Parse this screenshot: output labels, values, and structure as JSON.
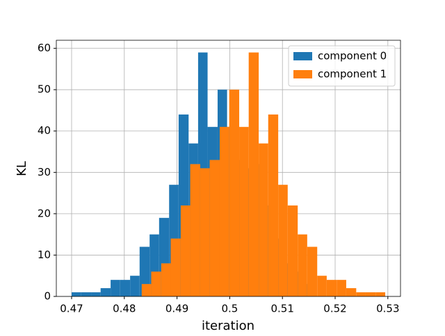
{
  "chart_data": {
    "type": "histogram",
    "xlabel": "iteration",
    "ylabel": "KL",
    "xlim": [
      0.4671,
      0.5324
    ],
    "ylim": [
      0,
      61.95
    ],
    "xticks": [
      0.47,
      0.48,
      0.49,
      0.5,
      0.51,
      0.52,
      0.53
    ],
    "yticks": [
      0,
      10,
      20,
      30,
      40,
      50,
      60
    ],
    "grid": true,
    "legend": "upper right",
    "series": [
      {
        "name": "component 0",
        "color": "#1f77b4",
        "bins": [
          0.47,
          0.4718,
          0.4737,
          0.4755,
          0.4774,
          0.4792,
          0.4811,
          0.4829,
          0.4848,
          0.4866,
          0.4885,
          0.4903,
          0.4922,
          0.494,
          0.4958,
          0.4977,
          0.4995,
          0.5014,
          0.5032,
          0.5051,
          0.5069,
          0.5088,
          0.5106,
          0.5125,
          0.5143,
          0.5162
        ],
        "values": [
          1,
          1,
          1,
          2,
          4,
          4,
          5,
          12,
          15,
          19,
          27,
          44,
          37,
          59,
          41,
          50,
          41,
          33,
          31,
          32,
          22,
          14,
          8,
          6,
          3
        ]
      },
      {
        "name": "component 1",
        "color": "#ff7f0e",
        "bins": [
          0.4833,
          0.4851,
          0.487,
          0.4888,
          0.4907,
          0.4925,
          0.4944,
          0.4962,
          0.4981,
          0.4999,
          0.5018,
          0.5036,
          0.5055,
          0.5073,
          0.5092,
          0.511,
          0.5129,
          0.5147,
          0.5166,
          0.5184,
          0.5203,
          0.5221,
          0.524,
          0.5258,
          0.5277,
          0.5295
        ],
        "values": [
          3,
          6,
          8,
          14,
          22,
          32,
          31,
          33,
          41,
          50,
          41,
          59,
          37,
          44,
          27,
          22,
          15,
          12,
          5,
          4,
          4,
          2,
          1,
          1,
          1
        ]
      }
    ]
  }
}
